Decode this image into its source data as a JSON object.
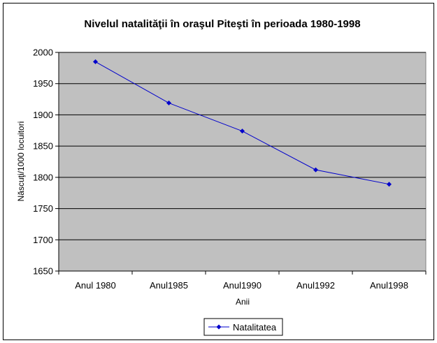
{
  "chart_data": {
    "type": "line",
    "title": "Nivelul natalităţii în oraşul Piteşti în perioada 1980-1998",
    "xlabel": "Anii",
    "ylabel": "Născuţi/1000 locuitori",
    "categories": [
      "Anul 1980",
      "Anul1985",
      "Anul1990",
      "Anul1992",
      "Anul1998"
    ],
    "series": [
      {
        "name": "Natalitatea",
        "values": [
          1985,
          1919,
          1874,
          1812,
          1789
        ]
      }
    ],
    "ylim": [
      1650,
      2000
    ],
    "yticks": [
      1650,
      1700,
      1750,
      1800,
      1850,
      1900,
      1950,
      2000
    ],
    "grid": "horizontal",
    "legend_position": "bottom",
    "colors": {
      "series": "#0000cc",
      "plot_bg": "#c0c0c0",
      "gridline": "#000000"
    }
  }
}
